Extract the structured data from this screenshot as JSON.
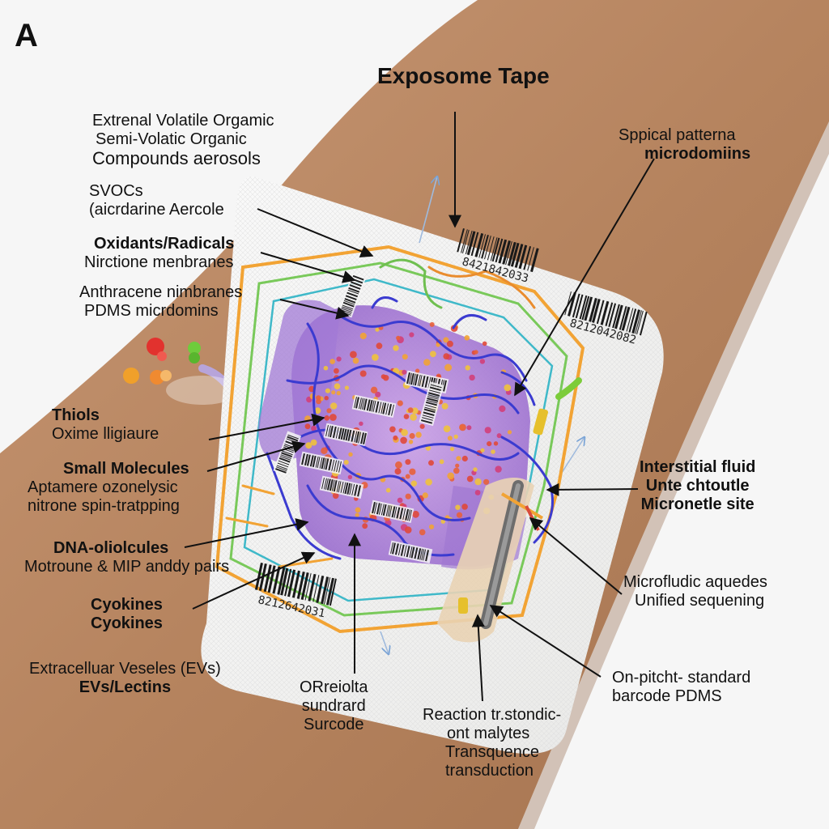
{
  "panel_letter": "A",
  "title": "Exposome Tape",
  "left_labels": {
    "voc": [
      "Extrenal Volatile Orgamic",
      "Semi-Volatic Organic",
      "Compounds aerosols"
    ],
    "svoc": [
      "SVOCs",
      "(aicrdarine Aercole"
    ],
    "oxidants": [
      "Oxidants/Radicals",
      "Nirctione menbranes"
    ],
    "anthracene": [
      "Anthracene nimbranes",
      "PDMS micrdomins"
    ],
    "thiols": [
      "Thiols",
      "Oxime lligiaure"
    ],
    "small": [
      "Small Molecules",
      "Aptamere ozonelysic",
      "nitrone spin-tratpping"
    ],
    "dna": [
      "DNA-oliolcules",
      "Motroune & MIP anddy pairs"
    ],
    "cytokines": [
      "Cyokines",
      "Cyokines"
    ],
    "evs": [
      "Extracelluar Veseles (EVs)",
      "EVs/Lectins"
    ]
  },
  "right_labels": {
    "spatial": [
      "Sppical patterna",
      "microdomiins"
    ],
    "interstitial": [
      "Interstitial fluid",
      "Unte chtoutle",
      "Micronetle site"
    ],
    "microfluidic": [
      "Microfludic aquedes",
      "Unified sequening"
    ],
    "onpitch": [
      "On-pitcht- standard",
      "barcode PDMS"
    ]
  },
  "bottom_labels": {
    "orr": [
      "ORreiolta",
      "sundrard",
      "Surcode"
    ],
    "reaction": [
      "Reaction tr.stondic-",
      "ont malytes",
      "Transquence",
      "transduction"
    ]
  },
  "barcodes": [
    "8421842033",
    "8212042082",
    "8212642031"
  ],
  "colors": {
    "skin": "#b98a66",
    "tape": "#f2f2f0",
    "purple": "#9b6fd0",
    "blue": "#3b3bd0",
    "orange": "#f2a334",
    "green": "#79c95a",
    "teal": "#3fb9c9"
  }
}
